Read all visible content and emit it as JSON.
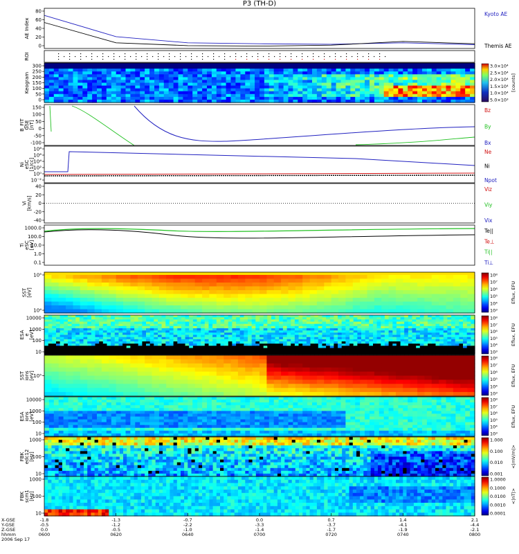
{
  "title": "P3 (TH-D)",
  "colors": {
    "blue": "#2020c0",
    "red": "#d01010",
    "green": "#20c020",
    "black": "#000000"
  },
  "footer": {
    "lines": [
      "X-GSE",
      "Y-GSE",
      "Z-GSE",
      "hhmm",
      "2006 Sep 17"
    ],
    "columns": [
      [
        "-1.8",
        "-0.5",
        "0.0",
        "0600"
      ],
      [
        "-1.3",
        "-1.2",
        "-0.5",
        "0620"
      ],
      [
        "-0.7",
        "-2.2",
        "-1.0",
        "0640"
      ],
      [
        "0.0",
        "-3.3",
        "-1.4",
        "0700"
      ],
      [
        "0.7",
        "-3.7",
        "-1.7",
        "0720"
      ],
      [
        "1.4",
        "-4.1",
        "-1.9",
        "0740"
      ],
      [
        "2.1",
        "-4.4",
        "-2.1",
        "0800"
      ]
    ]
  },
  "panels": [
    {
      "id": "ae",
      "ylabel": [
        "AE Index"
      ],
      "ticks": [
        "80",
        "60",
        "40",
        "20",
        "0"
      ],
      "legend": [
        {
          "text": "Kyoto AE",
          "color": "#2020c0"
        },
        {
          "text": "Themis AE",
          "color": "#000000"
        }
      ]
    },
    {
      "id": "roi",
      "ylabel": [
        "ROI"
      ],
      "ticks": [],
      "legend": []
    },
    {
      "id": "keogram",
      "ylabel": [
        "Keogram"
      ],
      "ticks": [
        "300",
        "250",
        "200",
        "150",
        "100",
        "50",
        "0"
      ],
      "colorbar": {
        "label": "[counts]",
        "ticks": [
          "3.0×10⁴",
          "2.5×10⁴",
          "2.0×10⁴",
          "1.5×10⁴",
          "1.0×10⁴",
          "5.0×10³"
        ]
      }
    },
    {
      "id": "bfit",
      "ylabel": [
        "B_FIT",
        "GSE",
        "[nT]"
      ],
      "ticks": [
        "150",
        "100",
        "50",
        "0",
        "-50",
        "-100"
      ],
      "legend": [
        {
          "text": "Bz",
          "color": "#d01010"
        },
        {
          "text": "By",
          "color": "#20c020"
        },
        {
          "text": "Bx",
          "color": "#2020c0"
        }
      ]
    },
    {
      "id": "ni",
      "ylabel": [
        "Ni",
        "eSC",
        "[1/cc]"
      ],
      "ticks": [
        "10⁸",
        "10⁶",
        "10⁴",
        "10²",
        "10⁰",
        "10⁻²"
      ],
      "legend": [
        {
          "text": "Ne",
          "color": "#d01010"
        },
        {
          "text": "Ni",
          "color": "#000000"
        },
        {
          "text": "Npot",
          "color": "#2020c0"
        }
      ]
    },
    {
      "id": "vi",
      "ylabel": [
        "Vi",
        "[km/s]"
      ],
      "ticks": [
        "40",
        "20",
        "0",
        "-20",
        "-40"
      ],
      "legend": [
        {
          "text": "Viz",
          "color": "#d01010"
        },
        {
          "text": "Viy",
          "color": "#20c020"
        },
        {
          "text": "Vix",
          "color": "#2020c0"
        }
      ]
    },
    {
      "id": "ti",
      "ylabel": [
        "Ti",
        "eSC",
        "[eV]"
      ],
      "ticks": [
        "1000.0",
        "100.0",
        "10.0",
        "1.0",
        "0.1"
      ],
      "legend": [
        {
          "text": "Te||",
          "color": "#000000"
        },
        {
          "text": "Te⊥",
          "color": "#d01010"
        },
        {
          "text": "Ti||",
          "color": "#20c020"
        },
        {
          "text": "Ti⊥",
          "color": "#2020c0"
        }
      ]
    },
    {
      "id": "sste",
      "ylabel": [
        "SST",
        "[eV]"
      ],
      "ticks": [
        "10⁵",
        "10⁴"
      ],
      "colorbar": {
        "label": "Eflux, EFU",
        "ticks": [
          "10⁸",
          "10⁷",
          "10⁶",
          "10⁵",
          "10⁴",
          "10³"
        ]
      }
    },
    {
      "id": "esae",
      "ylabel": [
        "ESA",
        "e",
        "[eV]"
      ],
      "ticks": [
        "10000",
        "1000",
        "100",
        "10"
      ],
      "colorbar": {
        "label": "Eflux, EFU",
        "ticks": [
          "10⁸",
          "10⁷",
          "10⁶",
          "10⁵",
          "10⁴",
          "10³"
        ]
      }
    },
    {
      "id": "ssti",
      "ylabel": [
        "SST",
        "ions",
        "[eV]"
      ],
      "ticks": [
        "10⁵"
      ],
      "colorbar": {
        "label": "Eflux, EFU",
        "ticks": [
          "10⁸",
          "10⁷",
          "10⁶",
          "10⁵",
          "10⁴",
          "10³"
        ]
      }
    },
    {
      "id": "esai",
      "ylabel": [
        "ESA",
        "ions",
        "[eV]"
      ],
      "ticks": [
        "10000",
        "1000",
        "100",
        "10"
      ],
      "colorbar": {
        "label": "Eflux, EFU",
        "ticks": [
          "10⁸",
          "10⁷",
          "10⁶",
          "10⁵",
          "10⁴",
          "10³"
        ]
      }
    },
    {
      "id": "fbke",
      "ylabel": [
        "FBK",
        "edc12",
        "[Hz]"
      ],
      "ticks": [
        "1000",
        "100",
        "10"
      ],
      "colorbar": {
        "label": "<|mV/m|>",
        "ticks": [
          "1.000",
          "0.100",
          "0.010",
          "0.001"
        ]
      }
    },
    {
      "id": "fbkb",
      "ylabel": [
        "FBK",
        "scm1",
        "[Hz]"
      ],
      "ticks": [
        "1000",
        "100",
        "10"
      ],
      "colorbar": {
        "label": "<|nT|>",
        "ticks": [
          "1.0000",
          "0.1000",
          "0.0100",
          "0.0010",
          "0.0001"
        ]
      }
    }
  ],
  "chart_data": {
    "type": "line",
    "x": [
      "0600",
      "0620",
      "0640",
      "0700",
      "0720",
      "0740",
      "0800"
    ],
    "series": [
      {
        "name": "Kyoto AE",
        "values": [
          70,
          25,
          12,
          10,
          9,
          12,
          8
        ]
      },
      {
        "name": "Themis AE",
        "values": [
          55,
          12,
          6,
          5,
          7,
          15,
          10
        ]
      }
    ],
    "ylabel": "AE Index",
    "ylim": [
      0,
      85
    ]
  }
}
